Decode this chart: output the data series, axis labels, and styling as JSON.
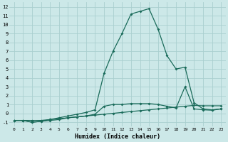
{
  "xlabel": "Humidex (Indice chaleur)",
  "bg_color": "#cce8e8",
  "grid_color": "#aacfcf",
  "line_color": "#1a6b5a",
  "xlim": [
    -0.5,
    23.5
  ],
  "ylim": [
    -1.5,
    12.5
  ],
  "xticks": [
    0,
    1,
    2,
    3,
    4,
    5,
    6,
    7,
    8,
    9,
    10,
    11,
    12,
    13,
    14,
    15,
    16,
    17,
    18,
    19,
    20,
    21,
    22,
    23
  ],
  "yticks": [
    -1,
    0,
    1,
    2,
    3,
    4,
    5,
    6,
    7,
    8,
    9,
    10,
    11,
    12
  ],
  "line_straight_x": [
    0,
    1,
    2,
    3,
    4,
    5,
    6,
    7,
    8,
    9,
    10,
    11,
    12,
    13,
    14,
    15,
    16,
    17,
    18,
    19,
    20,
    21,
    22,
    23
  ],
  "line_straight_y": [
    -0.8,
    -0.8,
    -0.8,
    -0.8,
    -0.7,
    -0.6,
    -0.5,
    -0.4,
    -0.3,
    -0.2,
    -0.1,
    0.0,
    0.1,
    0.2,
    0.3,
    0.4,
    0.5,
    0.6,
    0.7,
    0.8,
    0.9,
    0.85,
    0.85,
    0.85
  ],
  "line_mid_x": [
    0,
    1,
    2,
    3,
    4,
    5,
    6,
    7,
    8,
    9,
    10,
    11,
    12,
    13,
    14,
    15,
    16,
    17,
    18,
    19,
    20,
    21,
    22,
    23
  ],
  "line_mid_y": [
    -0.8,
    -0.8,
    -1.0,
    -0.9,
    -0.8,
    -0.7,
    -0.5,
    -0.4,
    -0.3,
    -0.1,
    0.8,
    1.0,
    1.0,
    1.1,
    1.1,
    1.1,
    1.0,
    0.8,
    0.6,
    3.0,
    0.5,
    0.4,
    0.35,
    0.5
  ],
  "line_peak_x": [
    0,
    1,
    2,
    3,
    4,
    5,
    6,
    7,
    8,
    9,
    10,
    11,
    12,
    13,
    14,
    15,
    16,
    17,
    18,
    19,
    20,
    21,
    22,
    23
  ],
  "line_peak_y": [
    -0.8,
    -0.8,
    -1.0,
    -0.9,
    -0.7,
    -0.5,
    -0.3,
    -0.1,
    0.1,
    0.4,
    4.5,
    7.0,
    9.0,
    11.2,
    11.5,
    11.8,
    9.5,
    6.5,
    5.0,
    5.2,
    1.2,
    0.5,
    0.4,
    0.5
  ]
}
